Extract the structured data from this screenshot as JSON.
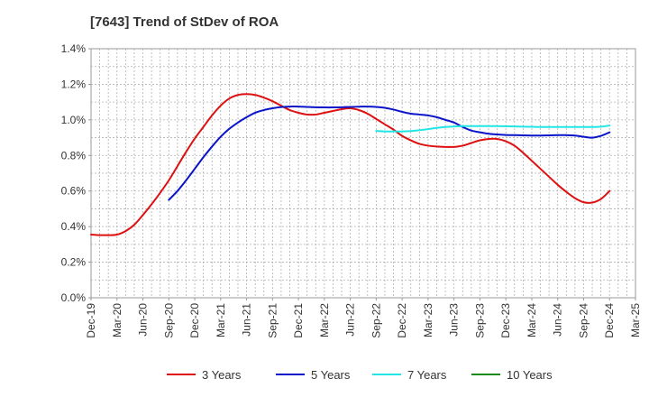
{
  "chart_data": {
    "type": "line",
    "title": "[7643]  Trend of StDev of ROA",
    "xlabel": "",
    "ylabel": "",
    "ylim": [
      0,
      1.4
    ],
    "y_unit": "%",
    "y_ticks": [
      "0.0%",
      "0.2%",
      "0.4%",
      "0.6%",
      "0.8%",
      "1.0%",
      "1.2%",
      "1.4%"
    ],
    "x_ticks": [
      "Dec-19",
      "Mar-20",
      "Jun-20",
      "Sep-20",
      "Dec-20",
      "Mar-21",
      "Jun-21",
      "Sep-21",
      "Dec-21",
      "Mar-22",
      "Jun-22",
      "Sep-22",
      "Dec-22",
      "Mar-23",
      "Jun-23",
      "Sep-23",
      "Dec-23",
      "Mar-24",
      "Jun-24",
      "Sep-24",
      "Dec-24",
      "Mar-25"
    ],
    "grid": true,
    "legend_position": "bottom",
    "series": [
      {
        "name": "3 Years",
        "color": "#dd1111",
        "points": [
          [
            "Dec-19",
            0.355
          ],
          [
            "Jan-20",
            0.352
          ],
          [
            "Feb-20",
            0.352
          ],
          [
            "Mar-20",
            0.355
          ],
          [
            "Apr-20",
            0.375
          ],
          [
            "May-20",
            0.41
          ],
          [
            "Jun-20",
            0.465
          ],
          [
            "Jul-20",
            0.525
          ],
          [
            "Aug-20",
            0.59
          ],
          [
            "Sep-20",
            0.66
          ],
          [
            "Oct-20",
            0.74
          ],
          [
            "Nov-20",
            0.82
          ],
          [
            "Dec-20",
            0.895
          ],
          [
            "Jan-21",
            0.96
          ],
          [
            "Feb-21",
            1.025
          ],
          [
            "Mar-21",
            1.08
          ],
          [
            "Apr-21",
            1.12
          ],
          [
            "May-21",
            1.14
          ],
          [
            "Jun-21",
            1.145
          ],
          [
            "Jul-21",
            1.14
          ],
          [
            "Aug-21",
            1.125
          ],
          [
            "Sep-21",
            1.105
          ],
          [
            "Oct-21",
            1.08
          ],
          [
            "Nov-21",
            1.055
          ],
          [
            "Dec-21",
            1.04
          ],
          [
            "Jan-22",
            1.03
          ],
          [
            "Feb-22",
            1.03
          ],
          [
            "Mar-22",
            1.04
          ],
          [
            "Apr-22",
            1.05
          ],
          [
            "May-22",
            1.06
          ],
          [
            "Jun-22",
            1.065
          ],
          [
            "Jul-22",
            1.055
          ],
          [
            "Aug-22",
            1.035
          ],
          [
            "Sep-22",
            1.005
          ],
          [
            "Oct-22",
            0.975
          ],
          [
            "Nov-22",
            0.945
          ],
          [
            "Dec-22",
            0.91
          ],
          [
            "Jan-23",
            0.885
          ],
          [
            "Feb-23",
            0.865
          ],
          [
            "Mar-23",
            0.855
          ],
          [
            "Apr-23",
            0.85
          ],
          [
            "May-23",
            0.848
          ],
          [
            "Jun-23",
            0.848
          ],
          [
            "Jul-23",
            0.855
          ],
          [
            "Aug-23",
            0.87
          ],
          [
            "Sep-23",
            0.885
          ],
          [
            "Oct-23",
            0.893
          ],
          [
            "Nov-23",
            0.893
          ],
          [
            "Dec-23",
            0.88
          ],
          [
            "Jan-24",
            0.855
          ],
          [
            "Feb-24",
            0.815
          ],
          [
            "Mar-24",
            0.77
          ],
          [
            "Apr-24",
            0.725
          ],
          [
            "May-24",
            0.68
          ],
          [
            "Jun-24",
            0.635
          ],
          [
            "Jul-24",
            0.595
          ],
          [
            "Aug-24",
            0.56
          ],
          [
            "Sep-24",
            0.537
          ],
          [
            "Oct-24",
            0.535
          ],
          [
            "Nov-24",
            0.555
          ],
          [
            "Dec-24",
            0.6
          ]
        ]
      },
      {
        "name": "5 Years",
        "color": "#0a14c8",
        "points": [
          [
            "Sep-20",
            0.55
          ],
          [
            "Oct-20",
            0.6
          ],
          [
            "Nov-20",
            0.66
          ],
          [
            "Dec-20",
            0.725
          ],
          [
            "Jan-21",
            0.79
          ],
          [
            "Feb-21",
            0.85
          ],
          [
            "Mar-21",
            0.905
          ],
          [
            "Apr-21",
            0.95
          ],
          [
            "May-21",
            0.985
          ],
          [
            "Jun-21",
            1.015
          ],
          [
            "Jul-21",
            1.04
          ],
          [
            "Aug-21",
            1.055
          ],
          [
            "Sep-21",
            1.065
          ],
          [
            "Oct-21",
            1.072
          ],
          [
            "Nov-21",
            1.075
          ],
          [
            "Dec-21",
            1.075
          ],
          [
            "Jan-22",
            1.073
          ],
          [
            "Feb-22",
            1.071
          ],
          [
            "Mar-22",
            1.07
          ],
          [
            "Apr-22",
            1.07
          ],
          [
            "May-22",
            1.071
          ],
          [
            "Jun-22",
            1.073
          ],
          [
            "Jul-22",
            1.074
          ],
          [
            "Aug-22",
            1.075
          ],
          [
            "Sep-22",
            1.073
          ],
          [
            "Oct-22",
            1.068
          ],
          [
            "Nov-22",
            1.058
          ],
          [
            "Dec-22",
            1.045
          ],
          [
            "Jan-23",
            1.035
          ],
          [
            "Feb-23",
            1.03
          ],
          [
            "Mar-23",
            1.025
          ],
          [
            "Apr-23",
            1.015
          ],
          [
            "May-23",
            1.0
          ],
          [
            "Jun-23",
            0.985
          ],
          [
            "Jul-23",
            0.96
          ],
          [
            "Aug-23",
            0.94
          ],
          [
            "Sep-23",
            0.93
          ],
          [
            "Oct-23",
            0.922
          ],
          [
            "Nov-23",
            0.918
          ],
          [
            "Dec-23",
            0.915
          ],
          [
            "Jan-24",
            0.914
          ],
          [
            "Feb-24",
            0.913
          ],
          [
            "Mar-24",
            0.912
          ],
          [
            "Apr-24",
            0.912
          ],
          [
            "May-24",
            0.913
          ],
          [
            "Jun-24",
            0.914
          ],
          [
            "Jul-24",
            0.914
          ],
          [
            "Aug-24",
            0.912
          ],
          [
            "Sep-24",
            0.905
          ],
          [
            "Oct-24",
            0.9
          ],
          [
            "Nov-24",
            0.91
          ],
          [
            "Dec-24",
            0.93
          ]
        ]
      },
      {
        "name": "7 Years",
        "color": "#22e5e5",
        "points": [
          [
            "Sep-22",
            0.938
          ],
          [
            "Oct-22",
            0.935
          ],
          [
            "Nov-22",
            0.935
          ],
          [
            "Dec-22",
            0.935
          ],
          [
            "Jan-23",
            0.937
          ],
          [
            "Feb-23",
            0.942
          ],
          [
            "Mar-23",
            0.948
          ],
          [
            "Apr-23",
            0.955
          ],
          [
            "May-23",
            0.96
          ],
          [
            "Jun-23",
            0.963
          ],
          [
            "Jul-23",
            0.965
          ],
          [
            "Aug-23",
            0.965
          ],
          [
            "Sep-23",
            0.965
          ],
          [
            "Oct-23",
            0.965
          ],
          [
            "Nov-23",
            0.965
          ],
          [
            "Dec-23",
            0.964
          ],
          [
            "Jan-24",
            0.963
          ],
          [
            "Feb-24",
            0.962
          ],
          [
            "Mar-24",
            0.961
          ],
          [
            "Apr-24",
            0.96
          ],
          [
            "May-24",
            0.96
          ],
          [
            "Jun-24",
            0.96
          ],
          [
            "Jul-24",
            0.96
          ],
          [
            "Aug-24",
            0.96
          ],
          [
            "Sep-24",
            0.96
          ],
          [
            "Oct-24",
            0.96
          ],
          [
            "Nov-24",
            0.962
          ],
          [
            "Dec-24",
            0.968
          ]
        ]
      },
      {
        "name": "10 Years",
        "color": "#1a8a1a",
        "points": []
      }
    ]
  }
}
